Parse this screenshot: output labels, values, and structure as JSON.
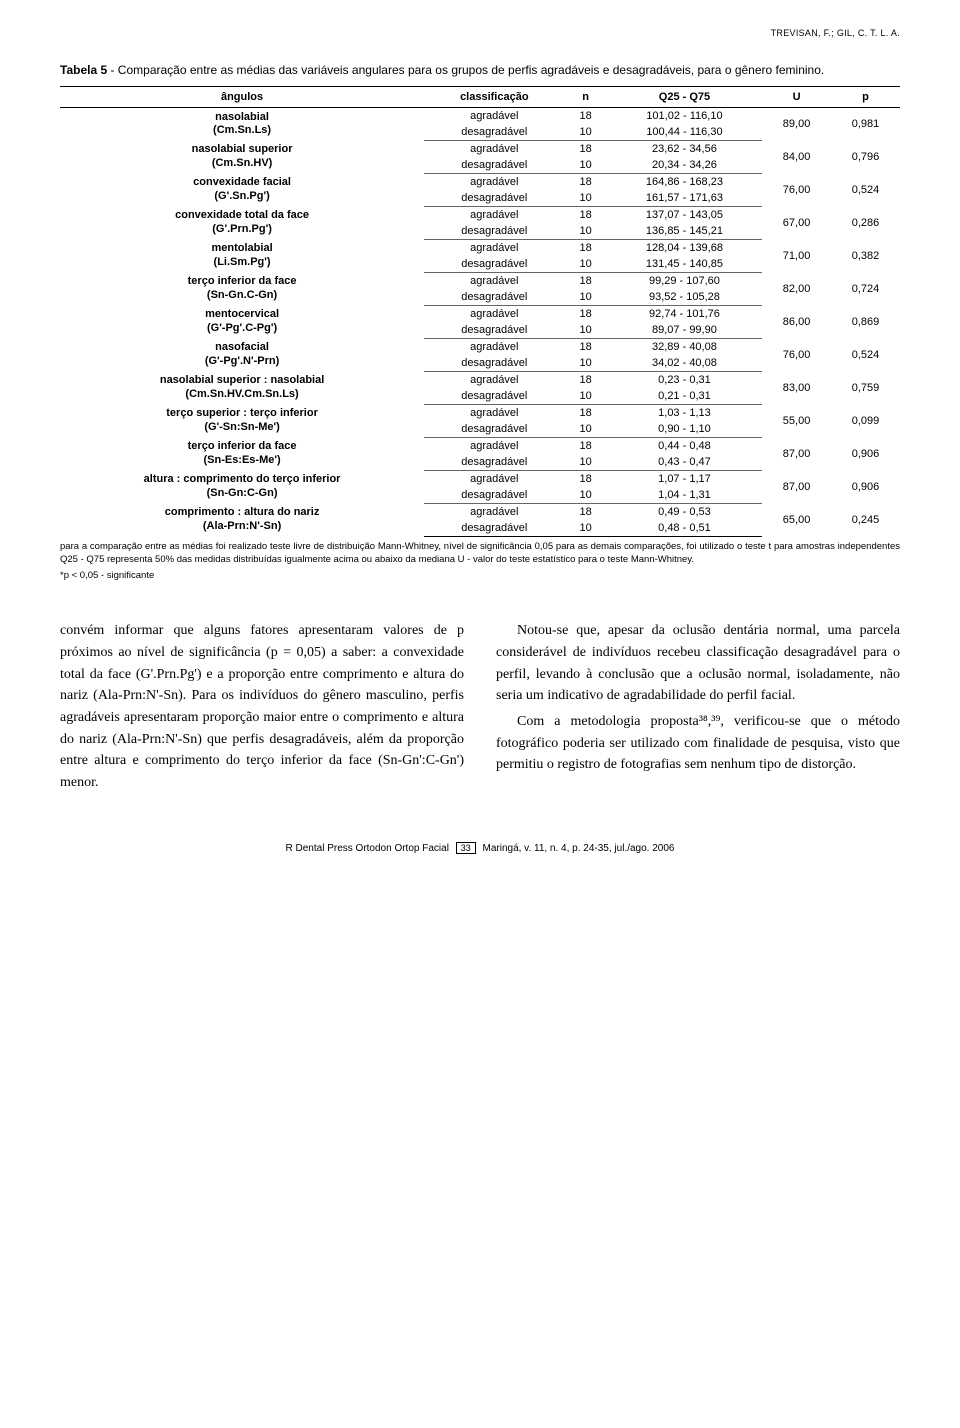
{
  "header": "TREVISAN, F.; GIL, C. T. L. A.",
  "table_caption_bold": "Tabela 5",
  "table_caption_rest": " - Comparação entre as médias das variáveis angulares para os grupos de perfis agradáveis e desagradáveis, para o gênero feminino.",
  "columns": [
    "ângulos",
    "classificação",
    "n",
    "Q25 - Q75",
    "U",
    "p"
  ],
  "rows": [
    {
      "angle": "nasolabial",
      "sub": "(Cm.Sn.Ls)",
      "a": {
        "n": "18",
        "q": "101,02 - 116,10"
      },
      "d": {
        "n": "10",
        "q": "100,44 - 116,30"
      },
      "U": "89,00",
      "p": "0,981"
    },
    {
      "angle": "nasolabial superior",
      "sub": "(Cm.Sn.HV)",
      "a": {
        "n": "18",
        "q": "23,62 - 34,56"
      },
      "d": {
        "n": "10",
        "q": "20,34 - 34,26"
      },
      "U": "84,00",
      "p": "0,796"
    },
    {
      "angle": "convexidade facial",
      "sub": "(G'.Sn.Pg')",
      "a": {
        "n": "18",
        "q": "164,86 - 168,23"
      },
      "d": {
        "n": "10",
        "q": "161,57 - 171,63"
      },
      "U": "76,00",
      "p": "0,524"
    },
    {
      "angle": "convexidade total da face",
      "sub": "(G'.Prn.Pg')",
      "a": {
        "n": "18",
        "q": "137,07 - 143,05"
      },
      "d": {
        "n": "10",
        "q": "136,85 - 145,21"
      },
      "U": "67,00",
      "p": "0,286"
    },
    {
      "angle": "mentolabial",
      "sub": "(Li.Sm.Pg')",
      "a": {
        "n": "18",
        "q": "128,04 - 139,68"
      },
      "d": {
        "n": "10",
        "q": "131,45 - 140,85"
      },
      "U": "71,00",
      "p": "0,382"
    },
    {
      "angle": "terço inferior da face",
      "sub": "(Sn-Gn.C-Gn)",
      "a": {
        "n": "18",
        "q": "99,29 - 107,60"
      },
      "d": {
        "n": "10",
        "q": "93,52 - 105,28"
      },
      "U": "82,00",
      "p": "0,724"
    },
    {
      "angle": "mentocervical",
      "sub": "(G'-Pg'.C-Pg')",
      "a": {
        "n": "18",
        "q": "92,74 - 101,76"
      },
      "d": {
        "n": "10",
        "q": "89,07 - 99,90"
      },
      "U": "86,00",
      "p": "0,869"
    },
    {
      "angle": "nasofacial",
      "sub": "(G'-Pg'.N'-Prn)",
      "a": {
        "n": "18",
        "q": "32,89 - 40,08"
      },
      "d": {
        "n": "10",
        "q": "34,02 - 40,08"
      },
      "U": "76,00",
      "p": "0,524"
    },
    {
      "angle": "nasolabial superior : nasolabial",
      "sub": "(Cm.Sn.HV.Cm.Sn.Ls)",
      "a": {
        "n": "18",
        "q": "0,23 - 0,31"
      },
      "d": {
        "n": "10",
        "q": "0,21 - 0,31"
      },
      "U": "83,00",
      "p": "0,759"
    },
    {
      "angle": "terço superior : terço inferior",
      "sub": "(G'-Sn:Sn-Me')",
      "a": {
        "n": "18",
        "q": "1,03 - 1,13"
      },
      "d": {
        "n": "10",
        "q": "0,90 - 1,10"
      },
      "U": "55,00",
      "p": "0,099"
    },
    {
      "angle": "terço inferior da face",
      "sub": "(Sn-Es:Es-Me')",
      "a": {
        "n": "18",
        "q": "0,44 - 0,48"
      },
      "d": {
        "n": "10",
        "q": "0,43 - 0,47"
      },
      "U": "87,00",
      "p": "0,906"
    },
    {
      "angle": "altura : comprimento do terço inferior",
      "sub": "(Sn-Gn:C-Gn)",
      "a": {
        "n": "18",
        "q": "1,07 - 1,17"
      },
      "d": {
        "n": "10",
        "q": "1,04 - 1,31"
      },
      "U": "87,00",
      "p": "0,906"
    },
    {
      "angle": "comprimento : altura do nariz",
      "sub": "(Ala-Prn:N'-Sn)",
      "a": {
        "n": "18",
        "q": "0,49 - 0,53"
      },
      "d": {
        "n": "10",
        "q": "0,48 - 0,51"
      },
      "U": "65,00",
      "p": "0,245"
    }
  ],
  "class_labels": {
    "a": "agradável",
    "d": "desagradável"
  },
  "footnote": "para a comparação entre as médias foi realizado teste livre de distribuição Mann-Whitney, nível de significância 0,05 para as demais comparações, foi utilizado o teste t para amostras independentes Q25 - Q75 representa 50% das medidas distribuídas igualmente acima ou abaixo da mediana U - valor do teste estatístico para o teste Mann-Whitney.",
  "footnote2": "*p < 0,05 - significante",
  "body_left": "convém informar que alguns fatores apresentaram valores de p próximos ao nível de significância (p = 0,05) a saber: a convexidade total da face (G'.Prn.Pg') e a proporção entre comprimento e altura do nariz (Ala-Prn:N'-Sn). Para os indivíduos do gênero masculino, perfis agradáveis apresentaram proporção maior entre o comprimento e altura do nariz (Ala-Prn:N'-Sn) que perfis desagradáveis, além da proporção entre altura e comprimento do terço inferior da face (Sn-Gn':C-Gn') menor.",
  "body_right_p1": "Notou-se que, apesar da oclusão dentária normal, uma parcela considerável de indivíduos recebeu classificação desagradável para o perfil, levando à conclusão que a oclusão normal, isoladamente, não seria um indicativo de agradabilidade do perfil facial.",
  "body_right_p2": "Com a metodologia proposta³⁸,³⁹, verificou-se que o método fotográfico poderia ser utilizado com finalidade de pesquisa, visto que permitiu o registro de fotografias sem nenhum tipo de distorção.",
  "footer_left": "R Dental Press Ortodon Ortop Facial",
  "footer_page": "33",
  "footer_right": "Maringá, v. 11, n. 4, p. 24-35, jul./ago. 2006"
}
